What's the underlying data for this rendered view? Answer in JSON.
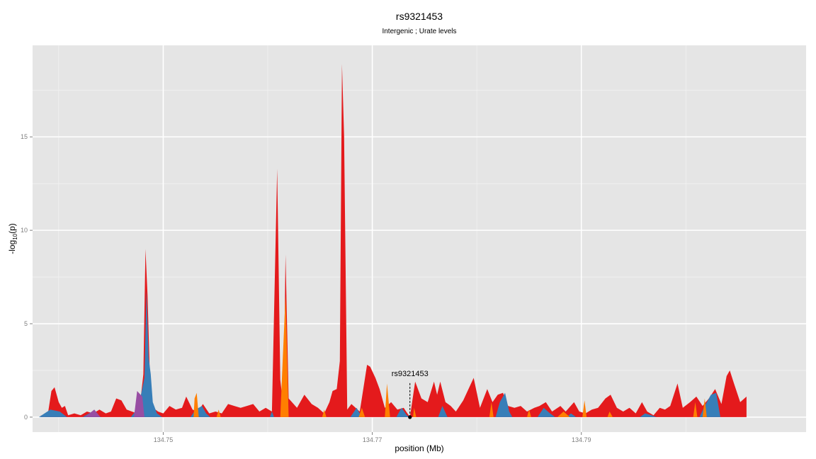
{
  "chart_data": {
    "type": "area",
    "title": "rs9321453",
    "subtitle": "Intergenic ; Urate levels",
    "xlabel": "position (Mb)",
    "ylabel": "-log10(p)",
    "ylabel_parts": {
      "base": "-log",
      "sub": "10",
      "rest": "(p)"
    },
    "xlim": [
      134.7375,
      134.8115
    ],
    "ylim": [
      -0.8,
      19.9
    ],
    "x_ticks": [
      134.75,
      134.77,
      134.79
    ],
    "x_tick_labels": [
      "134.75",
      "134.77",
      "134.79"
    ],
    "y_ticks": [
      0,
      5,
      10,
      15
    ],
    "y_tick_labels": [
      "0",
      "5",
      "10",
      "15"
    ],
    "grid": true,
    "background": "#e5e5e5",
    "annotation": {
      "label": "rs9321453",
      "x": 134.7736,
      "y": 0
    },
    "series": [
      {
        "color": "#e41a1c",
        "points": [
          [
            134.7383,
            0.1
          ],
          [
            134.7386,
            0.0
          ],
          [
            134.739,
            0.3
          ],
          [
            134.7393,
            1.4
          ],
          [
            134.7396,
            1.6
          ],
          [
            134.74,
            0.8
          ],
          [
            134.7403,
            0.5
          ],
          [
            134.7406,
            0.6
          ],
          [
            134.7409,
            0.1
          ],
          [
            134.7415,
            0.2
          ],
          [
            134.7421,
            0.1
          ],
          [
            134.7427,
            0.3
          ],
          [
            134.7433,
            0.2
          ],
          [
            134.7439,
            0.4
          ],
          [
            134.7445,
            0.2
          ],
          [
            134.745,
            0.3
          ],
          [
            134.7455,
            1.0
          ],
          [
            134.746,
            0.9
          ],
          [
            134.7465,
            0.4
          ],
          [
            134.747,
            0.3
          ],
          [
            134.7475,
            0.2
          ],
          [
            134.7478,
            0.8
          ],
          [
            134.7481,
            2.3
          ],
          [
            134.7483,
            9.0
          ],
          [
            134.7485,
            6.5
          ],
          [
            134.7488,
            0.6
          ],
          [
            134.7495,
            0.3
          ],
          [
            134.75,
            0.2
          ],
          [
            134.7506,
            0.6
          ],
          [
            134.7512,
            0.4
          ],
          [
            134.7518,
            0.5
          ],
          [
            134.7522,
            1.1
          ],
          [
            134.7528,
            0.4
          ],
          [
            134.7533,
            0.3
          ],
          [
            134.7538,
            0.7
          ],
          [
            134.7544,
            0.2
          ],
          [
            134.755,
            0.3
          ],
          [
            134.7556,
            0.2
          ],
          [
            134.7562,
            0.7
          ],
          [
            134.7568,
            0.6
          ],
          [
            134.7574,
            0.5
          ],
          [
            134.758,
            0.6
          ],
          [
            134.7586,
            0.7
          ],
          [
            134.7592,
            0.3
          ],
          [
            134.7598,
            0.5
          ],
          [
            134.7604,
            0.3
          ],
          [
            134.7609,
            13.3
          ],
          [
            134.7612,
            2.0
          ],
          [
            134.7615,
            0.5
          ],
          [
            134.7617,
            8.7
          ],
          [
            134.762,
            1.0
          ],
          [
            134.7628,
            0.5
          ],
          [
            134.7635,
            1.2
          ],
          [
            134.7642,
            0.7
          ],
          [
            134.7648,
            0.5
          ],
          [
            134.7654,
            0.2
          ],
          [
            134.7659,
            0.8
          ],
          [
            134.7662,
            1.4
          ],
          [
            134.7666,
            1.5
          ],
          [
            134.7669,
            3.0
          ],
          [
            134.7671,
            18.9
          ],
          [
            134.7673,
            15.0
          ],
          [
            134.7676,
            0.4
          ],
          [
            134.768,
            0.7
          ],
          [
            134.7688,
            0.3
          ],
          [
            134.7695,
            2.8
          ],
          [
            134.7698,
            2.7
          ],
          [
            134.7703,
            2.1
          ],
          [
            134.7707,
            1.5
          ],
          [
            134.7712,
            0.5
          ],
          [
            134.7718,
            0.8
          ],
          [
            134.7724,
            0.4
          ],
          [
            134.773,
            0.5
          ],
          [
            134.7736,
            0.0
          ],
          [
            134.7741,
            1.9
          ],
          [
            134.7747,
            1.0
          ],
          [
            134.7753,
            0.8
          ],
          [
            134.7759,
            1.9
          ],
          [
            134.7762,
            1.2
          ],
          [
            134.7765,
            1.9
          ],
          [
            134.777,
            0.8
          ],
          [
            134.7775,
            0.6
          ],
          [
            134.778,
            0.3
          ],
          [
            134.7787,
            0.9
          ],
          [
            134.7797,
            2.1
          ],
          [
            134.7803,
            0.5
          ],
          [
            134.781,
            1.5
          ],
          [
            134.7815,
            0.8
          ],
          [
            134.782,
            1.2
          ],
          [
            134.7825,
            1.3
          ],
          [
            134.783,
            0.6
          ],
          [
            134.7836,
            0.5
          ],
          [
            134.7842,
            0.6
          ],
          [
            134.7848,
            0.3
          ],
          [
            134.7855,
            0.5
          ],
          [
            134.786,
            0.6
          ],
          [
            134.7866,
            0.8
          ],
          [
            134.7872,
            0.3
          ],
          [
            134.788,
            0.6
          ],
          [
            134.7885,
            0.3
          ],
          [
            134.7893,
            0.8
          ],
          [
            134.7898,
            0.3
          ],
          [
            134.7904,
            0.2
          ],
          [
            134.791,
            0.4
          ],
          [
            134.7916,
            0.5
          ],
          [
            134.7923,
            1.0
          ],
          [
            134.7928,
            1.2
          ],
          [
            134.7934,
            0.5
          ],
          [
            134.794,
            0.3
          ],
          [
            134.7946,
            0.5
          ],
          [
            134.7952,
            0.2
          ],
          [
            134.7958,
            0.8
          ],
          [
            134.7963,
            0.3
          ],
          [
            134.7969,
            0.1
          ],
          [
            134.7975,
            0.5
          ],
          [
            134.798,
            0.4
          ],
          [
            134.7985,
            0.6
          ],
          [
            134.7992,
            1.8
          ],
          [
            134.7997,
            0.5
          ],
          [
            134.8004,
            0.8
          ],
          [
            134.801,
            1.1
          ],
          [
            134.8016,
            0.6
          ],
          [
            134.8022,
            1.0
          ],
          [
            134.8028,
            1.5
          ],
          [
            134.8034,
            0.7
          ],
          [
            134.8039,
            2.2
          ],
          [
            134.8042,
            2.5
          ],
          [
            134.8046,
            1.8
          ],
          [
            134.8052,
            0.8
          ],
          [
            134.8058,
            1.1
          ]
        ]
      },
      {
        "color": "#377eb8",
        "points": [
          [
            134.7381,
            0.0
          ],
          [
            134.7392,
            0.4
          ],
          [
            134.7401,
            0.3
          ],
          [
            134.7408,
            0.0
          ],
          [
            134.7423,
            0.0
          ],
          [
            134.7432,
            0.3
          ],
          [
            134.7436,
            0.1
          ],
          [
            134.7441,
            0.0
          ],
          [
            134.7469,
            0.0
          ],
          [
            134.7476,
            0.5
          ],
          [
            134.7478,
            1.0
          ],
          [
            134.7482,
            2.1
          ],
          [
            134.7484,
            6.8
          ],
          [
            134.7486,
            3.2
          ],
          [
            134.7488,
            2.3
          ],
          [
            134.749,
            0.8
          ],
          [
            134.7494,
            0.2
          ],
          [
            134.7499,
            0.0
          ],
          [
            134.7526,
            0.0
          ],
          [
            134.7531,
            0.4
          ],
          [
            134.7537,
            0.6
          ],
          [
            134.7541,
            0.2
          ],
          [
            134.7545,
            0.0
          ],
          [
            134.7602,
            0.0
          ],
          [
            134.7604,
            0.3
          ],
          [
            134.7606,
            0.0
          ],
          [
            134.7679,
            0.0
          ],
          [
            134.7685,
            0.5
          ],
          [
            134.769,
            0.0
          ],
          [
            134.7723,
            0.0
          ],
          [
            134.7728,
            0.5
          ],
          [
            134.7733,
            0.1
          ],
          [
            134.7736,
            0.0
          ],
          [
            134.7763,
            0.0
          ],
          [
            134.7767,
            0.6
          ],
          [
            134.7772,
            0.0
          ],
          [
            134.7818,
            0.0
          ],
          [
            134.7822,
            0.8
          ],
          [
            134.7827,
            1.3
          ],
          [
            134.7831,
            0.3
          ],
          [
            134.7834,
            0.0
          ],
          [
            134.7858,
            0.0
          ],
          [
            134.7864,
            0.5
          ],
          [
            134.787,
            0.2
          ],
          [
            134.7875,
            0.0
          ],
          [
            134.7886,
            0.0
          ],
          [
            134.789,
            0.2
          ],
          [
            134.7895,
            0.0
          ],
          [
            134.7956,
            0.0
          ],
          [
            134.7961,
            0.2
          ],
          [
            134.7967,
            0.1
          ],
          [
            134.7972,
            0.0
          ],
          [
            134.8013,
            0.0
          ],
          [
            134.8018,
            0.6
          ],
          [
            134.8024,
            1.2
          ],
          [
            134.8029,
            1.3
          ],
          [
            134.8033,
            0.0
          ]
        ]
      },
      {
        "color": "#ff7f00",
        "points": [
          [
            134.7529,
            0.0
          ],
          [
            134.753,
            1.0
          ],
          [
            134.7532,
            1.3
          ],
          [
            134.7534,
            0.0
          ],
          [
            134.7551,
            0.0
          ],
          [
            134.7553,
            0.4
          ],
          [
            134.7555,
            0.0
          ],
          [
            134.7612,
            0.0
          ],
          [
            134.7614,
            2.7
          ],
          [
            134.7617,
            6.5
          ],
          [
            134.762,
            0.0
          ],
          [
            134.7652,
            0.0
          ],
          [
            134.7654,
            0.4
          ],
          [
            134.7656,
            0.0
          ],
          [
            134.7687,
            0.0
          ],
          [
            134.769,
            0.5
          ],
          [
            134.7693,
            0.0
          ],
          [
            134.7712,
            0.0
          ],
          [
            134.7714,
            1.8
          ],
          [
            134.7717,
            0.0
          ],
          [
            134.7739,
            0.0
          ],
          [
            134.774,
            0.5
          ],
          [
            134.7742,
            0.0
          ],
          [
            134.7812,
            0.0
          ],
          [
            134.7814,
            0.8
          ],
          [
            134.7816,
            0.0
          ],
          [
            134.7848,
            0.0
          ],
          [
            134.785,
            0.4
          ],
          [
            134.7852,
            0.0
          ],
          [
            134.7877,
            0.0
          ],
          [
            134.7883,
            0.3
          ],
          [
            134.7889,
            0.0
          ],
          [
            134.7901,
            0.0
          ],
          [
            134.7903,
            0.9
          ],
          [
            134.7905,
            0.0
          ],
          [
            134.7925,
            0.0
          ],
          [
            134.7927,
            0.3
          ],
          [
            134.793,
            0.0
          ],
          [
            134.8007,
            0.0
          ],
          [
            134.8009,
            0.8
          ],
          [
            134.8011,
            0.0
          ],
          [
            134.8016,
            0.0
          ],
          [
            134.8018,
            1.0
          ],
          [
            134.802,
            0.0
          ]
        ]
      },
      {
        "color": "#984ea3",
        "points": [
          [
            134.7425,
            0.0
          ],
          [
            134.7434,
            0.4
          ],
          [
            134.744,
            0.0
          ],
          [
            134.7472,
            0.0
          ],
          [
            134.7475,
            1.4
          ],
          [
            134.748,
            1.1
          ],
          [
            134.7482,
            0.0
          ]
        ]
      }
    ]
  }
}
